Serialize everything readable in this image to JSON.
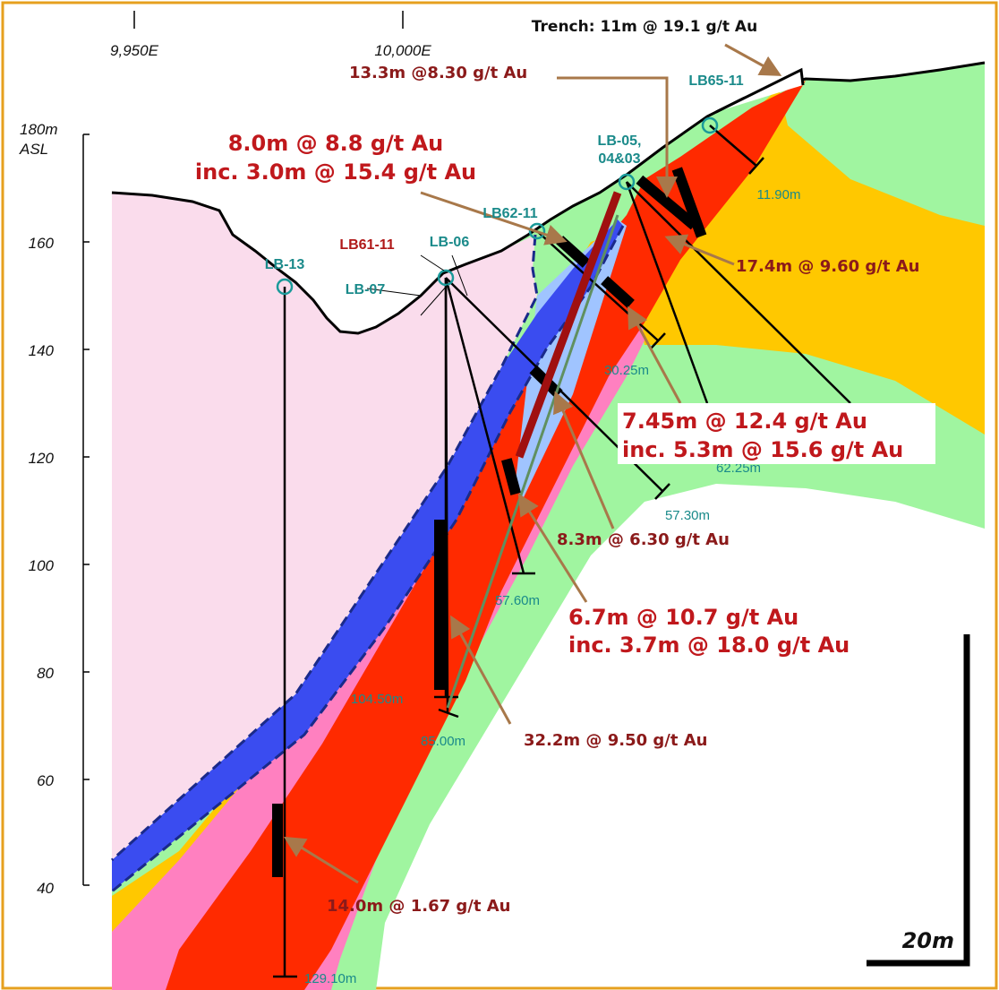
{
  "eastings": [
    "9,950E",
    "10,000E"
  ],
  "elevation": {
    "top": [
      "180m",
      "ASL"
    ],
    "labels": [
      "160",
      "140",
      "120",
      "100",
      "80",
      "60",
      "40"
    ]
  },
  "holes": [
    "LB65-11",
    "LB-05,",
    "04&03",
    "LB62-11",
    "LB61-11",
    "LB-06",
    "LB-13",
    "LB-07"
  ],
  "depths": [
    "11.90m",
    "30.25m",
    "62.25m",
    "57.30m",
    "57.60m",
    "104.50m",
    "85.00m",
    "129.10m"
  ],
  "intercepts": [
    "Trench: 11m @ 19.1 g/t Au",
    "13.3m @8.30 g/t Au",
    "8.0m @  8.8 g/t Au",
    "inc. 3.0m @ 15.4 g/t Au",
    "17.4m @ 9.60 g/t Au",
    "7.45m @ 12.4 g/t Au",
    "inc. 5.3m @  15.6 g/t Au",
    "8.3m @ 6.30 g/t Au",
    "6.7m @ 10.7 g/t Au",
    "inc. 3.7m @ 18.0 g/t Au",
    "32.2m @ 9.50 g/t Au",
    "14.0m @ 1.67 g/t Au"
  ],
  "scale_bar": "20m"
}
